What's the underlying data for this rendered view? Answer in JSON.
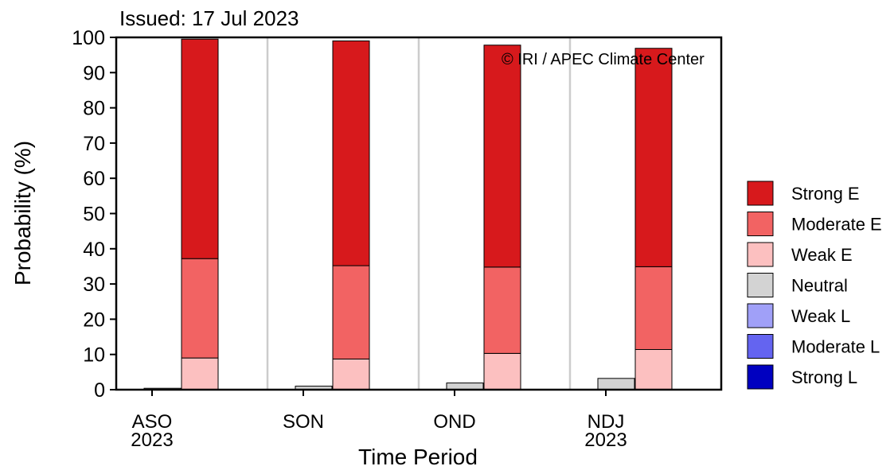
{
  "issued": "Issued: 17 Jul 2023",
  "watermark": "© IRI / APEC Climate Center",
  "chart_data": {
    "type": "bar",
    "stacked": true,
    "xlabel": "Time Period",
    "ylabel": "Probability (%)",
    "ylim": [
      0,
      100
    ],
    "yticks": [
      0,
      10,
      20,
      30,
      40,
      50,
      60,
      70,
      80,
      90,
      100
    ],
    "grid": false,
    "legend_position": "right",
    "categories": [
      {
        "line1": "ASO",
        "line2": "2023"
      },
      {
        "line1": "SON",
        "line2": ""
      },
      {
        "line1": "OND",
        "line2": ""
      },
      {
        "line1": "NDJ",
        "line2": "2023"
      }
    ],
    "series": [
      {
        "name": "Strong E",
        "color": "#d7191c",
        "bar": "elnino",
        "values": [
          62.3,
          63.8,
          63.0,
          62.0
        ]
      },
      {
        "name": "Moderate E",
        "color": "#f26363",
        "bar": "elnino",
        "values": [
          28.2,
          26.5,
          24.5,
          23.5
        ]
      },
      {
        "name": "Weak E",
        "color": "#fcc0c0",
        "bar": "elnino",
        "values": [
          9.0,
          8.7,
          10.3,
          11.4
        ]
      },
      {
        "name": "Neutral",
        "color": "#d3d3d3",
        "bar": "neutral",
        "values": [
          0.4,
          1.0,
          1.9,
          3.2
        ]
      },
      {
        "name": "Weak L",
        "color": "#a0a0f8",
        "bar": "lanina",
        "values": [
          0,
          0,
          0,
          0
        ]
      },
      {
        "name": "Moderate L",
        "color": "#6464f0",
        "bar": "lanina",
        "values": [
          0,
          0,
          0,
          0
        ]
      },
      {
        "name": "Strong L",
        "color": "#0000c0",
        "bar": "lanina",
        "values": [
          0,
          0,
          0,
          0
        ]
      }
    ]
  }
}
